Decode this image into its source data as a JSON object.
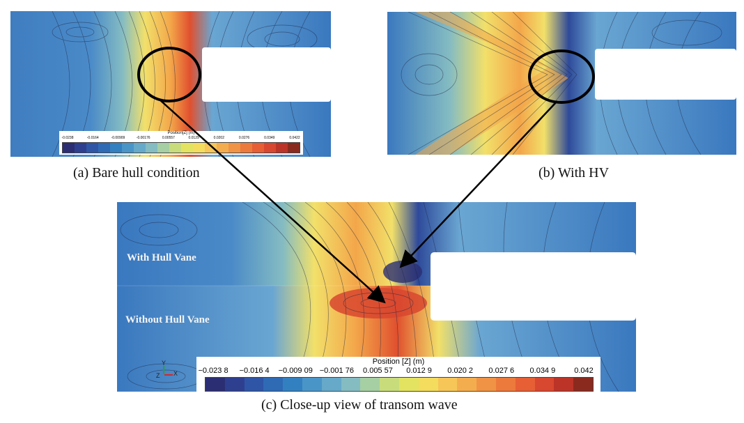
{
  "captions": {
    "a": "(a) Bare hull condition",
    "b": "(b) With HV",
    "c": "(c) Close-up view of transom wave"
  },
  "labels": {
    "with_hull_vane": "With Hull Vane",
    "without_hull_vane": "Without Hull Vane"
  },
  "legend": {
    "title": "Position [Z] (m)",
    "ticks": [
      "−0.023 8",
      "−0.016 4",
      "−0.009 09",
      "−0.001 76",
      "0.005 57",
      "0.012 9",
      "0.020 2",
      "0.027 6",
      "0.034 9",
      "0.042"
    ],
    "small_title": "Position[Z] (m)",
    "small_ticks": [
      "-0.0238",
      "-0.0164",
      "-0.00909",
      "-0.00176",
      "0.00557",
      "0.0129",
      "0.0202",
      "0.0276",
      "0.0349",
      "0.0422"
    ],
    "colors": [
      "#2b2e73",
      "#2f3f8f",
      "#2f55a6",
      "#2f6ab5",
      "#3380c0",
      "#4a95c8",
      "#66a9c9",
      "#85bcc2",
      "#a6cfa3",
      "#c8dc7c",
      "#e3e361",
      "#f3dc5e",
      "#f6c658",
      "#f4ad4e",
      "#f09344",
      "#ec7a3c",
      "#e65f35",
      "#d8472f",
      "#bc3428",
      "#8a2a1e"
    ]
  },
  "axis": {
    "x": "X",
    "y": "Y",
    "z": "Z"
  },
  "palette": {
    "deep": "#2e4a9a",
    "blue": "#3a78bf",
    "light_blue": "#6aa6d2",
    "cyan": "#8cc3c8",
    "green": "#b5d48a",
    "yellow": "#f2e06a",
    "orange": "#f3a64a",
    "red": "#e0502e",
    "dark_red": "#a8301f"
  }
}
